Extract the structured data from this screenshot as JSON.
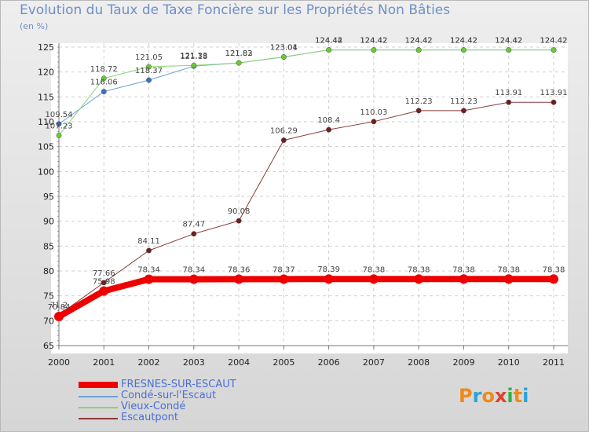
{
  "header": {
    "title": "Evolution du Taux de Taxe Foncière sur les Propriétés Non Bâties",
    "subtitle": "(en %)"
  },
  "logo": {
    "letters": [
      "P",
      "r",
      "o",
      "x",
      "i",
      "t",
      "i"
    ],
    "colors": [
      "#f08a1a",
      "#29a3d8",
      "#f08a1a",
      "#e0402a",
      "#2bb24c",
      "#f08a1a",
      "#29a3d8"
    ]
  },
  "chart_data": {
    "type": "line",
    "title": "Evolution du Taux de Taxe Foncière sur les Propriétés Non Bâties",
    "ylabel": "(en %)",
    "xlabel": "",
    "x": [
      "2000",
      "2001",
      "2002",
      "2003",
      "2004",
      "2005",
      "2006",
      "2007",
      "2008",
      "2009",
      "2010",
      "2011"
    ],
    "ylim": [
      65,
      125
    ],
    "yticks": [
      65,
      70,
      75,
      80,
      85,
      90,
      95,
      100,
      105,
      110,
      115,
      120,
      125
    ],
    "grid": true,
    "legend_position": "bottom-left",
    "series": [
      {
        "name": "FRESNES-SUR-ESCAUT",
        "color": "#ee0000",
        "point_color": "#ee0000",
        "values": [
          70.84,
          75.98,
          78.34,
          78.34,
          78.36,
          78.37,
          78.39,
          78.38,
          78.38,
          78.38,
          78.38,
          78.38
        ]
      },
      {
        "name": "Condé-sur-l'Escaut",
        "color": "#6ea0d8",
        "point_color": "#3a6fcc",
        "values": [
          109.54,
          116.06,
          118.37,
          121.18,
          121.83,
          123.01,
          124.44,
          124.42,
          124.42,
          124.42,
          124.42,
          124.42
        ]
      },
      {
        "name": "Vieux-Condé",
        "color": "#8ad470",
        "point_color": "#66cc33",
        "values": [
          107.23,
          118.72,
          121.05,
          121.33,
          121.82,
          123.04,
          124.42,
          124.42,
          124.42,
          124.42,
          124.42,
          124.42
        ]
      },
      {
        "name": "Escautpont",
        "color": "#8b3a3a",
        "point_color": "#6e1f1f",
        "values": [
          71.2,
          77.66,
          84.11,
          87.47,
          90.08,
          106.29,
          108.4,
          110.03,
          112.23,
          112.23,
          113.91,
          113.91
        ]
      }
    ]
  }
}
